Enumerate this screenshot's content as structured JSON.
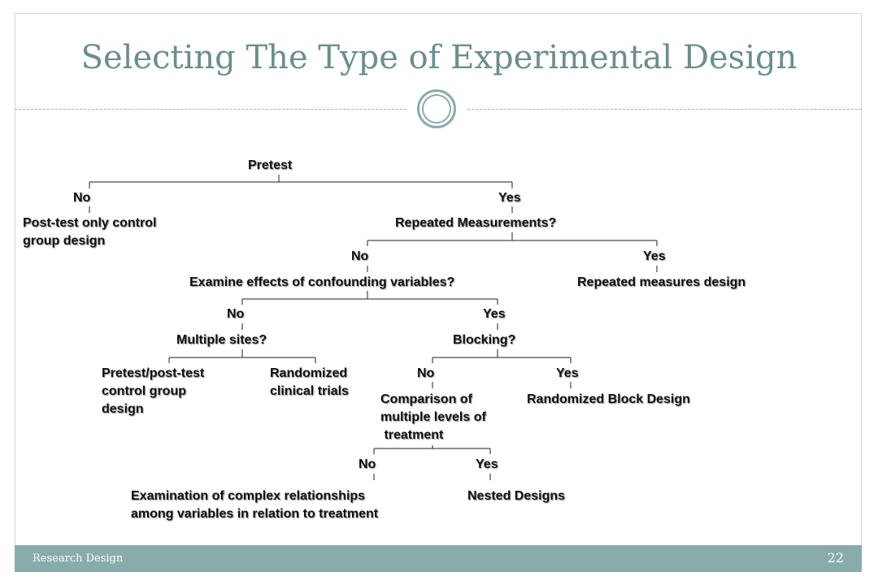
{
  "slide": {
    "title": "Selecting The Type of Experimental Design",
    "footer_left": "Research Design",
    "page_number": "22"
  },
  "tree": {
    "pretest": "Pretest",
    "pretest_no": "No",
    "pretest_yes": "Yes",
    "posttest_only": "Post-test only control\ngroup design",
    "repeated_q": "Repeated Measurements?",
    "repeated_no": "No",
    "repeated_yes": "Yes",
    "repeated_design": "Repeated measures design",
    "confounding_q": "Examine effects of confounding variables?",
    "confounding_no": "No",
    "confounding_yes": "Yes",
    "multiple_sites_q": "Multiple sites?",
    "pretest_posttest": "Pretest/post-test\ncontrol group\ndesign",
    "randomized_trials": "Randomized\nclinical trials",
    "blocking_q": "Blocking?",
    "blocking_no": "No",
    "blocking_yes": "Yes",
    "comparison_q": "Comparison of\nmultiple levels of\n treatment",
    "randomized_block": "Randomized Block Design",
    "comparison_no": "No",
    "comparison_yes": "Yes",
    "complex_relationships": "Examination of complex relationships\namong variables in relation to treatment",
    "nested": "Nested Designs"
  }
}
